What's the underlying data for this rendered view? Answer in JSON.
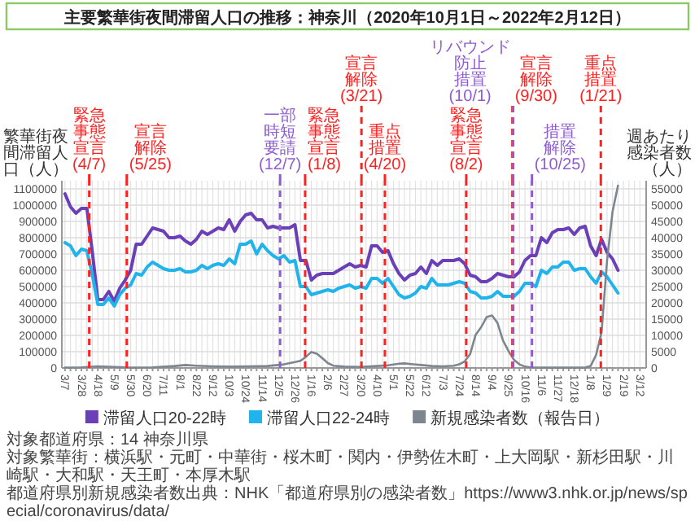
{
  "chart_data": {
    "type": "line",
    "title": "主要繁華街夜間滞留人口の推移：神奈川（2020年10月1日～2022年2月12日）",
    "ylabel": "繁華街夜間滞留人口（人）",
    "y2label": "週あたり感染者数（人）",
    "x": [
      "2020-03-07",
      "2020-03-14",
      "2020-03-21",
      "2020-03-28",
      "2020-04-04",
      "2020-04-11",
      "2020-04-18",
      "2020-04-25",
      "2020-05-02",
      "2020-05-09",
      "2020-05-16",
      "2020-05-23",
      "2020-05-30",
      "2020-06-06",
      "2020-06-13",
      "2020-06-20",
      "2020-06-27",
      "2020-07-04",
      "2020-07-11",
      "2020-07-18",
      "2020-07-25",
      "2020-08-01",
      "2020-08-08",
      "2020-08-15",
      "2020-08-22",
      "2020-08-29",
      "2020-09-05",
      "2020-09-12",
      "2020-09-19",
      "2020-09-26",
      "2020-10-03",
      "2020-10-10",
      "2020-10-17",
      "2020-10-24",
      "2020-10-31",
      "2020-11-07",
      "2020-11-14",
      "2020-11-21",
      "2020-11-28",
      "2020-12-05",
      "2020-12-12",
      "2020-12-19",
      "2020-12-26",
      "2021-01-02",
      "2021-01-09",
      "2021-01-16",
      "2021-01-23",
      "2021-01-30",
      "2021-02-06",
      "2021-02-13",
      "2021-02-20",
      "2021-02-27",
      "2021-03-06",
      "2021-03-13",
      "2021-03-20",
      "2021-03-27",
      "2021-04-03",
      "2021-04-10",
      "2021-04-17",
      "2021-04-24",
      "2021-05-01",
      "2021-05-08",
      "2021-05-15",
      "2021-05-22",
      "2021-05-29",
      "2021-06-05",
      "2021-06-12",
      "2021-06-19",
      "2021-06-26",
      "2021-07-03",
      "2021-07-10",
      "2021-07-17",
      "2021-07-24",
      "2021-07-31",
      "2021-08-07",
      "2021-08-14",
      "2021-08-21",
      "2021-08-28",
      "2021-09-04",
      "2021-09-11",
      "2021-09-18",
      "2021-09-25",
      "2021-10-02",
      "2021-10-09",
      "2021-10-16",
      "2021-10-23",
      "2021-10-30",
      "2021-11-06",
      "2021-11-13",
      "2021-11-20",
      "2021-11-27",
      "2021-12-04",
      "2021-12-11",
      "2021-12-18",
      "2021-12-25",
      "2022-01-01",
      "2022-01-08",
      "2022-01-15",
      "2022-01-22",
      "2022-01-29",
      "2022-02-05",
      "2022-02-12"
    ],
    "xlim": [
      "2020-03-03",
      "2022-03-20"
    ],
    "xticks": [
      {
        "value": "2020-03-07",
        "label": "3/7"
      },
      {
        "value": "2020-03-14",
        "label": null
      },
      {
        "value": "2020-03-21",
        "label": null
      },
      {
        "value": "2020-03-28",
        "label": "3/28"
      },
      {
        "value": "2020-04-04",
        "label": null
      },
      {
        "value": "2020-04-11",
        "label": null
      },
      {
        "value": "2020-04-18",
        "label": "4/18"
      },
      {
        "value": "2020-04-25",
        "label": null
      },
      {
        "value": "2020-05-02",
        "label": null
      },
      {
        "value": "2020-05-09",
        "label": "5/9"
      },
      {
        "value": "2020-05-16",
        "label": null
      },
      {
        "value": "2020-05-23",
        "label": null
      },
      {
        "value": "2020-05-30",
        "label": "5/30"
      },
      {
        "value": "2020-06-06",
        "label": null
      },
      {
        "value": "2020-06-13",
        "label": null
      },
      {
        "value": "2020-06-20",
        "label": "6/20"
      },
      {
        "value": "2020-06-27",
        "label": null
      },
      {
        "value": "2020-07-04",
        "label": null
      },
      {
        "value": "2020-07-11",
        "label": "7/11"
      },
      {
        "value": "2020-07-18",
        "label": null
      },
      {
        "value": "2020-07-25",
        "label": null
      },
      {
        "value": "2020-08-01",
        "label": "8/1"
      },
      {
        "value": "2020-08-08",
        "label": null
      },
      {
        "value": "2020-08-15",
        "label": null
      },
      {
        "value": "2020-08-22",
        "label": "8/22"
      },
      {
        "value": "2020-08-29",
        "label": null
      },
      {
        "value": "2020-09-05",
        "label": null
      },
      {
        "value": "2020-09-12",
        "label": "9/12"
      },
      {
        "value": "2020-09-19",
        "label": null
      },
      {
        "value": "2020-09-26",
        "label": null
      },
      {
        "value": "2020-10-03",
        "label": "10/3"
      },
      {
        "value": "2020-10-10",
        "label": null
      },
      {
        "value": "2020-10-17",
        "label": null
      },
      {
        "value": "2020-10-24",
        "label": "10/24"
      },
      {
        "value": "2020-10-31",
        "label": null
      },
      {
        "value": "2020-11-07",
        "label": null
      },
      {
        "value": "2020-11-14",
        "label": "11/14"
      },
      {
        "value": "2020-11-21",
        "label": null
      },
      {
        "value": "2020-11-28",
        "label": null
      },
      {
        "value": "2020-12-05",
        "label": "12/5"
      },
      {
        "value": "2020-12-12",
        "label": null
      },
      {
        "value": "2020-12-19",
        "label": null
      },
      {
        "value": "2020-12-26",
        "label": "12/26"
      },
      {
        "value": "2021-01-02",
        "label": null
      },
      {
        "value": "2021-01-09",
        "label": null
      },
      {
        "value": "2021-01-16",
        "label": "1/16"
      },
      {
        "value": "2021-01-23",
        "label": null
      },
      {
        "value": "2021-01-30",
        "label": null
      },
      {
        "value": "2021-02-06",
        "label": "2/6"
      },
      {
        "value": "2021-02-13",
        "label": null
      },
      {
        "value": "2021-02-20",
        "label": null
      },
      {
        "value": "2021-02-27",
        "label": "2/27"
      },
      {
        "value": "2021-03-06",
        "label": null
      },
      {
        "value": "2021-03-13",
        "label": null
      },
      {
        "value": "2021-03-20",
        "label": "3/20"
      },
      {
        "value": "2021-03-27",
        "label": null
      },
      {
        "value": "2021-04-03",
        "label": null
      },
      {
        "value": "2021-04-10",
        "label": "4/10"
      },
      {
        "value": "2021-04-17",
        "label": null
      },
      {
        "value": "2021-04-24",
        "label": null
      },
      {
        "value": "2021-05-01",
        "label": "5/1"
      },
      {
        "value": "2021-05-08",
        "label": null
      },
      {
        "value": "2021-05-15",
        "label": null
      },
      {
        "value": "2021-05-22",
        "label": "5/22"
      },
      {
        "value": "2021-05-29",
        "label": null
      },
      {
        "value": "2021-06-05",
        "label": null
      },
      {
        "value": "2021-06-12",
        "label": "6/12"
      },
      {
        "value": "2021-06-19",
        "label": null
      },
      {
        "value": "2021-06-26",
        "label": null
      },
      {
        "value": "2021-07-03",
        "label": "7/3"
      },
      {
        "value": "2021-07-10",
        "label": null
      },
      {
        "value": "2021-07-17",
        "label": null
      },
      {
        "value": "2021-07-24",
        "label": "7/24"
      },
      {
        "value": "2021-07-31",
        "label": null
      },
      {
        "value": "2021-08-07",
        "label": null
      },
      {
        "value": "2021-08-14",
        "label": "8/14"
      },
      {
        "value": "2021-08-21",
        "label": null
      },
      {
        "value": "2021-08-28",
        "label": null
      },
      {
        "value": "2021-09-04",
        "label": "9/4"
      },
      {
        "value": "2021-09-11",
        "label": null
      },
      {
        "value": "2021-09-18",
        "label": null
      },
      {
        "value": "2021-09-25",
        "label": "9/25"
      },
      {
        "value": "2021-10-02",
        "label": null
      },
      {
        "value": "2021-10-09",
        "label": null
      },
      {
        "value": "2021-10-16",
        "label": "10/16"
      },
      {
        "value": "2021-10-23",
        "label": null
      },
      {
        "value": "2021-10-30",
        "label": null
      },
      {
        "value": "2021-11-06",
        "label": "11/6"
      },
      {
        "value": "2021-11-13",
        "label": null
      },
      {
        "value": "2021-11-20",
        "label": null
      },
      {
        "value": "2021-11-27",
        "label": "11/27"
      },
      {
        "value": "2021-12-04",
        "label": null
      },
      {
        "value": "2021-12-11",
        "label": null
      },
      {
        "value": "2021-12-18",
        "label": "12/18"
      },
      {
        "value": "2021-12-25",
        "label": null
      },
      {
        "value": "2022-01-01",
        "label": null
      },
      {
        "value": "2022-01-08",
        "label": "1/8"
      },
      {
        "value": "2022-01-15",
        "label": null
      },
      {
        "value": "2022-01-22",
        "label": null
      },
      {
        "value": "2022-01-29",
        "label": "1/29"
      },
      {
        "value": "2022-02-05",
        "label": null
      },
      {
        "value": "2022-02-12",
        "label": null
      },
      {
        "value": "2022-02-19",
        "label": "2/19"
      },
      {
        "value": "2022-02-26",
        "label": null
      },
      {
        "value": "2022-03-05",
        "label": null
      },
      {
        "value": "2022-03-12",
        "label": "3/12"
      }
    ],
    "ylim": [
      0,
      1150000
    ],
    "yticks": [
      0,
      100000,
      200000,
      300000,
      400000,
      500000,
      600000,
      700000,
      800000,
      900000,
      1000000,
      1100000
    ],
    "y2lim": [
      0,
      57500
    ],
    "y2ticks": [
      0,
      5000,
      10000,
      15000,
      20000,
      25000,
      30000,
      35000,
      40000,
      45000,
      50000,
      55000
    ],
    "series": [
      {
        "name": "滞留人口20-22時",
        "color": "#6a3fb8",
        "values": [
          1070000,
          990000,
          950000,
          980000,
          980000,
          710000,
          420000,
          420000,
          470000,
          410000,
          490000,
          540000,
          600000,
          760000,
          760000,
          810000,
          860000,
          850000,
          840000,
          800000,
          800000,
          810000,
          780000,
          760000,
          790000,
          840000,
          820000,
          840000,
          860000,
          850000,
          910000,
          840000,
          900000,
          940000,
          950000,
          910000,
          910000,
          860000,
          870000,
          860000,
          860000,
          860000,
          880000,
          660000,
          660000,
          540000,
          570000,
          580000,
          580000,
          580000,
          600000,
          620000,
          640000,
          620000,
          630000,
          620000,
          750000,
          750000,
          710000,
          720000,
          640000,
          580000,
          540000,
          570000,
          580000,
          620000,
          580000,
          660000,
          630000,
          660000,
          660000,
          660000,
          670000,
          640000,
          570000,
          560000,
          530000,
          530000,
          550000,
          580000,
          570000,
          560000,
          560000,
          590000,
          660000,
          690000,
          690000,
          800000,
          770000,
          830000,
          850000,
          850000,
          860000,
          820000,
          860000,
          870000,
          750000,
          690000,
          790000,
          710000,
          670000,
          600000
        ]
      },
      {
        "name": "滞留人口22-24時",
        "color": "#21b4ec",
        "values": [
          770000,
          750000,
          690000,
          730000,
          720000,
          570000,
          390000,
          390000,
          430000,
          380000,
          450000,
          490000,
          510000,
          580000,
          570000,
          620000,
          650000,
          630000,
          610000,
          600000,
          600000,
          610000,
          590000,
          590000,
          600000,
          630000,
          610000,
          630000,
          640000,
          630000,
          670000,
          640000,
          760000,
          760000,
          780000,
          700000,
          760000,
          720000,
          690000,
          670000,
          690000,
          650000,
          660000,
          500000,
          500000,
          450000,
          460000,
          470000,
          480000,
          470000,
          490000,
          500000,
          510000,
          490000,
          500000,
          490000,
          550000,
          550000,
          520000,
          550000,
          500000,
          450000,
          430000,
          440000,
          460000,
          500000,
          490000,
          550000,
          510000,
          510000,
          510000,
          520000,
          530000,
          520000,
          470000,
          460000,
          430000,
          430000,
          440000,
          470000,
          440000,
          440000,
          440000,
          470000,
          520000,
          520000,
          500000,
          600000,
          580000,
          620000,
          620000,
          650000,
          650000,
          600000,
          610000,
          610000,
          560000,
          520000,
          590000,
          560000,
          510000,
          460000
        ]
      },
      {
        "name": "新規感染者数（報告日）",
        "color": "#7d868e",
        "axis": "y2",
        "x": [
          "2020-03-07",
          "2020-03-28",
          "2020-04-18",
          "2020-05-09",
          "2020-05-30",
          "2020-06-27",
          "2020-07-25",
          "2020-08-08",
          "2020-08-22",
          "2020-09-12",
          "2020-10-03",
          "2020-10-31",
          "2020-11-21",
          "2020-12-12",
          "2020-12-26",
          "2021-01-02",
          "2021-01-09",
          "2021-01-16",
          "2021-01-23",
          "2021-01-30",
          "2021-02-06",
          "2021-02-13",
          "2021-02-27",
          "2021-03-20",
          "2021-04-10",
          "2021-04-24",
          "2021-05-08",
          "2021-05-15",
          "2021-06-05",
          "2021-06-19",
          "2021-07-03",
          "2021-07-17",
          "2021-07-24",
          "2021-07-31",
          "2021-08-07",
          "2021-08-14",
          "2021-08-21",
          "2021-08-28",
          "2021-09-04",
          "2021-09-11",
          "2021-09-18",
          "2021-09-25",
          "2021-10-02",
          "2021-10-09",
          "2021-10-16",
          "2021-10-23",
          "2021-11-13",
          "2021-12-11",
          "2022-01-01",
          "2022-01-08",
          "2022-01-15",
          "2022-01-22",
          "2022-01-29",
          "2022-02-05",
          "2022-02-12"
        ],
        "values": [
          100,
          200,
          500,
          300,
          100,
          200,
          600,
          900,
          700,
          500,
          400,
          500,
          600,
          1100,
          1800,
          2200,
          3400,
          4900,
          4400,
          3000,
          1500,
          700,
          400,
          300,
          600,
          800,
          1300,
          1400,
          900,
          600,
          500,
          700,
          1100,
          2000,
          4300,
          10200,
          12500,
          15600,
          16100,
          13800,
          8400,
          5200,
          2500,
          1100,
          400,
          200,
          100,
          100,
          100,
          600,
          4000,
          11000,
          33000,
          48000,
          56000
        ]
      }
    ],
    "ref_lines": [
      {
        "axis": "x",
        "value": "2020-04-07",
        "label": "緊急事態宣言(4/7)",
        "color": "#ff2020",
        "line_style": "dashed"
      },
      {
        "axis": "x",
        "value": "2020-05-25",
        "label": "宣言解除(5/25)",
        "color": "#ff2020",
        "line_style": "dashed"
      },
      {
        "axis": "x",
        "value": "2020-12-07",
        "label": "一部時短要請(12/7)",
        "color": "#8e5cd0",
        "line_style": "dashed"
      },
      {
        "axis": "x",
        "value": "2021-01-08",
        "label": "緊急事態宣言(1/8)",
        "color": "#ff2020",
        "line_style": "dashed"
      },
      {
        "axis": "x",
        "value": "2021-03-21",
        "label": "宣言解除(3/21)",
        "color": "#ff2020",
        "line_style": "dashed"
      },
      {
        "axis": "x",
        "value": "2021-04-20",
        "label": "重点措置(4/20)",
        "color": "#ff2020",
        "line_style": "dashed"
      },
      {
        "axis": "x",
        "value": "2021-08-02",
        "label": "緊急事態宣言(8/2)",
        "color": "#ff2020",
        "line_style": "dashed"
      },
      {
        "axis": "x",
        "value": "2021-09-30",
        "label": "宣言解除(9/30)",
        "color": "#ff2020",
        "line_style": "dashed"
      },
      {
        "axis": "x",
        "value": "2021-10-01",
        "label": "リバウンド防止措置(10/1)",
        "color": "#8e5cd0",
        "line_style": "dashed"
      },
      {
        "axis": "x",
        "value": "2021-10-25",
        "label": "措置解除(10/25)",
        "color": "#8e5cd0",
        "line_style": "dashed"
      },
      {
        "axis": "x",
        "value": "2022-01-21",
        "label": "重点措置(1/21)",
        "color": "#ff2020",
        "line_style": "dashed"
      }
    ],
    "grid": true,
    "legend": "bottom",
    "annotations": [
      "対象都道府県：14 神奈川県",
      "対象繁華街：横浜駅・元町・中華街・桜木町・関内・伊勢佐木町・上大岡駅・新杉田駅・川崎駅・大和駅・天王町・本厚木駅",
      "都道府県別新規感染者数出典：NHK「都道府県別の感染者数」https://www3.nhk.or.jp/news/special/coronavirus/data/"
    ]
  }
}
